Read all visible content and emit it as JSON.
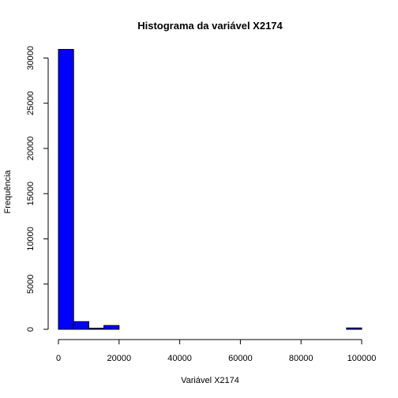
{
  "chart_data": {
    "type": "bar",
    "title": "Histograma da variável X2174",
    "xlabel": "Variável X2174",
    "ylabel": "Frequência",
    "bar_color": "#0000ff",
    "bin_width": 5000,
    "bins": [
      {
        "x0": 0,
        "x1": 5000,
        "count": 30950
      },
      {
        "x0": 5000,
        "x1": 10000,
        "count": 850
      },
      {
        "x0": 10000,
        "x1": 15000,
        "count": 120
      },
      {
        "x0": 15000,
        "x1": 20000,
        "count": 420
      },
      {
        "x0": 20000,
        "x1": 25000,
        "count": 0
      },
      {
        "x0": 25000,
        "x1": 30000,
        "count": 0
      },
      {
        "x0": 30000,
        "x1": 35000,
        "count": 0
      },
      {
        "x0": 35000,
        "x1": 40000,
        "count": 0
      },
      {
        "x0": 40000,
        "x1": 45000,
        "count": 0
      },
      {
        "x0": 45000,
        "x1": 50000,
        "count": 0
      },
      {
        "x0": 50000,
        "x1": 55000,
        "count": 0
      },
      {
        "x0": 55000,
        "x1": 60000,
        "count": 0
      },
      {
        "x0": 60000,
        "x1": 65000,
        "count": 0
      },
      {
        "x0": 65000,
        "x1": 70000,
        "count": 0
      },
      {
        "x0": 70000,
        "x1": 75000,
        "count": 0
      },
      {
        "x0": 75000,
        "x1": 80000,
        "count": 0
      },
      {
        "x0": 80000,
        "x1": 85000,
        "count": 0
      },
      {
        "x0": 85000,
        "x1": 90000,
        "count": 0
      },
      {
        "x0": 90000,
        "x1": 95000,
        "count": 0
      },
      {
        "x0": 95000,
        "x1": 100000,
        "count": 150
      }
    ],
    "xlim": [
      0,
      100000
    ],
    "ylim": [
      0,
      31000
    ],
    "xticks": [
      0,
      20000,
      40000,
      60000,
      80000,
      100000
    ],
    "xtick_labels": [
      "0",
      "20000",
      "40000",
      "60000",
      "80000",
      "100000"
    ],
    "yticks": [
      0,
      5000,
      10000,
      15000,
      20000,
      25000,
      30000
    ],
    "ytick_labels": [
      "0",
      "5000",
      "10000",
      "15000",
      "20000",
      "25000",
      "30000"
    ],
    "grid": false
  }
}
